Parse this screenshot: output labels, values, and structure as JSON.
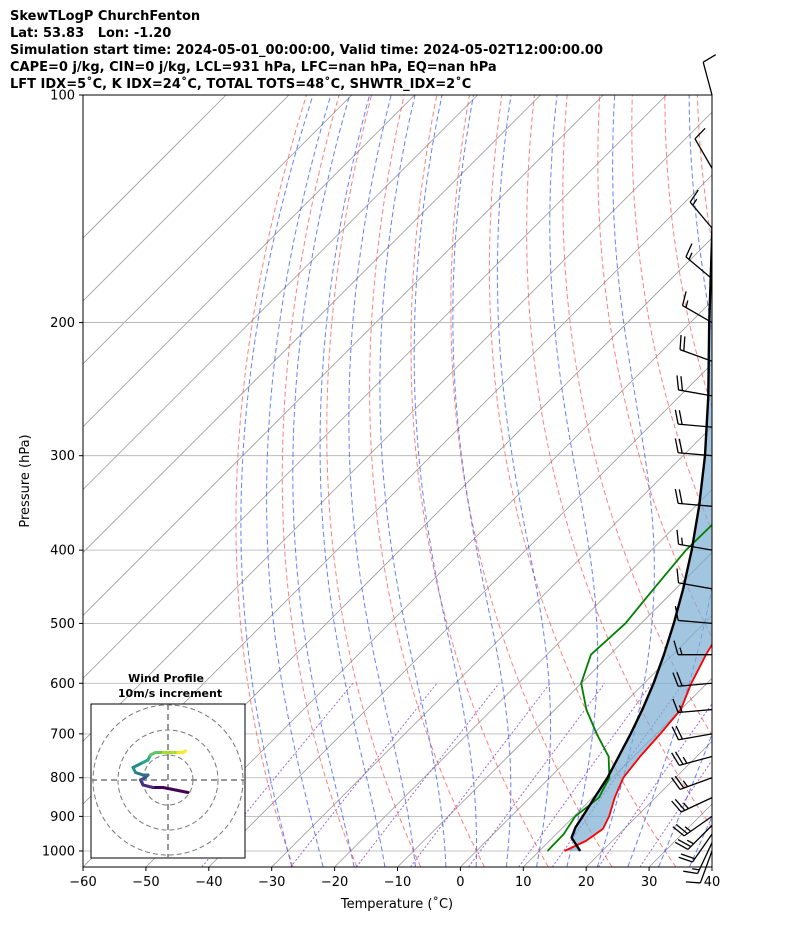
{
  "chart_data": {
    "type": "line",
    "title_lines": [
      "SkewTLogP ChurchFenton",
      "Lat: 53.83   Lon: -1.20",
      "Simulation start time: 2024-05-01_00:00:00, Valid time: 2024-05-02T12:00:00.00",
      "CAPE=0 j/kg, CIN=0 j/kg, LCL=931 hPa, LFC=nan hPa, EQ=nan hPa",
      "LFT IDX=5˚C, K IDX=24˚C, TOTAL TOTS=48˚C, SHWTR_IDX=2˚C"
    ],
    "xlabel": "Temperature (˚C)",
    "ylabel": "Pressure (hPa)",
    "xlim": [
      -60,
      40
    ],
    "ylim": [
      1050,
      100
    ],
    "y_scale": "log",
    "x_ticks": [
      -60,
      -50,
      -40,
      -30,
      -20,
      -10,
      0,
      10,
      20,
      30,
      40
    ],
    "y_ticks": [
      100,
      200,
      300,
      400,
      500,
      600,
      700,
      800,
      900,
      1000
    ],
    "skew": true,
    "grid": true,
    "colors": {
      "temperature": "#ff0000",
      "dewpoint": "#008000",
      "parcel": "#000000",
      "shade": "#7aaed3",
      "dry_adiabats": "#ff5555",
      "moist_adiabats": "#3355ff",
      "mixing_ratio": "#8844cc",
      "isotherms": "#999999"
    },
    "series": [
      {
        "name": "",
        "id": "temperature",
        "points": [
          [
            1000,
            14.0
          ],
          [
            970,
            15.8
          ],
          [
            935,
            16.6
          ],
          [
            900,
            15.6
          ],
          [
            850,
            13.5
          ],
          [
            800,
            11.7
          ],
          [
            750,
            11.0
          ],
          [
            700,
            10.6
          ],
          [
            650,
            10.0
          ],
          [
            600,
            7.5
          ],
          [
            550,
            5.3
          ],
          [
            500,
            3.3
          ],
          [
            450,
            0.3
          ],
          [
            400,
            -3.1
          ],
          [
            350,
            -6.3
          ],
          [
            300,
            -11.2
          ],
          [
            275,
            -12.2
          ],
          [
            250,
            -13.0
          ],
          [
            225,
            -12.0
          ],
          [
            210,
            -9.5
          ],
          [
            200,
            -6.2
          ],
          [
            180,
            -3.0
          ],
          [
            160,
            -0.5
          ],
          [
            140,
            3.0
          ],
          [
            125,
            6.5
          ],
          [
            115,
            8.5
          ],
          [
            106,
            9.6
          ],
          [
            100,
            10.5
          ]
        ]
      },
      {
        "name": "",
        "id": "dewpoint",
        "points": [
          [
            1000,
            11.3
          ],
          [
            950,
            11.2
          ],
          [
            900,
            10.2
          ],
          [
            850,
            11.0
          ],
          [
            800,
            9.5
          ],
          [
            750,
            6.0
          ],
          [
            700,
            0.5
          ],
          [
            650,
            -5.0
          ],
          [
            600,
            -10.0
          ],
          [
            550,
            -13.0
          ],
          [
            500,
            -12.5
          ],
          [
            450,
            -13.5
          ],
          [
            400,
            -14.5
          ],
          [
            350,
            -14.3
          ],
          [
            300,
            -18.0
          ],
          [
            270,
            -20.5
          ],
          [
            240,
            -22.0
          ],
          [
            210,
            -23.5
          ],
          [
            200,
            -24.5
          ],
          [
            180,
            -30.5
          ],
          [
            170,
            -34.0
          ],
          [
            150,
            -33.5
          ],
          [
            130,
            -32.5
          ],
          [
            110,
            -32.5
          ],
          [
            100,
            -32.3
          ]
        ]
      },
      {
        "name": "",
        "id": "parcel",
        "points": [
          [
            1000,
            16.5
          ],
          [
            960,
            13.0
          ],
          [
            931,
            12.0
          ],
          [
            900,
            11.4
          ],
          [
            850,
            10.3
          ],
          [
            800,
            9.2
          ],
          [
            750,
            7.6
          ],
          [
            700,
            5.9
          ],
          [
            650,
            3.9
          ],
          [
            600,
            1.5
          ],
          [
            550,
            -1.4
          ],
          [
            500,
            -4.8
          ],
          [
            450,
            -8.8
          ],
          [
            400,
            -13.6
          ],
          [
            350,
            -19.4
          ],
          [
            300,
            -26.5
          ],
          [
            250,
            -35.5
          ],
          [
            200,
            -47.0
          ],
          [
            150,
            -61.5
          ],
          [
            100,
            -80.0
          ]
        ]
      }
    ],
    "wind_barbs": [
      {
        "p": 1000,
        "speed_kt": 10,
        "dir": 200
      },
      {
        "p": 975,
        "speed_kt": 15,
        "dir": 205
      },
      {
        "p": 950,
        "speed_kt": 20,
        "dir": 215
      },
      {
        "p": 925,
        "speed_kt": 25,
        "dir": 225
      },
      {
        "p": 900,
        "speed_kt": 25,
        "dir": 235
      },
      {
        "p": 850,
        "speed_kt": 25,
        "dir": 245
      },
      {
        "p": 800,
        "speed_kt": 25,
        "dir": 250
      },
      {
        "p": 750,
        "speed_kt": 25,
        "dir": 255
      },
      {
        "p": 700,
        "speed_kt": 20,
        "dir": 260
      },
      {
        "p": 650,
        "speed_kt": 15,
        "dir": 265
      },
      {
        "p": 600,
        "speed_kt": 20,
        "dir": 265
      },
      {
        "p": 550,
        "speed_kt": 15,
        "dir": 270
      },
      {
        "p": 500,
        "speed_kt": 10,
        "dir": 275
      },
      {
        "p": 450,
        "speed_kt": 10,
        "dir": 280
      },
      {
        "p": 400,
        "speed_kt": 15,
        "dir": 280
      },
      {
        "p": 350,
        "speed_kt": 20,
        "dir": 275
      },
      {
        "p": 300,
        "speed_kt": 20,
        "dir": 275
      },
      {
        "p": 275,
        "speed_kt": 20,
        "dir": 275
      },
      {
        "p": 250,
        "speed_kt": 20,
        "dir": 280
      },
      {
        "p": 225,
        "speed_kt": 20,
        "dir": 290
      },
      {
        "p": 200,
        "speed_kt": 15,
        "dir": 300
      },
      {
        "p": 175,
        "speed_kt": 15,
        "dir": 310
      },
      {
        "p": 150,
        "speed_kt": 15,
        "dir": 320
      },
      {
        "p": 125,
        "speed_kt": 10,
        "dir": 330
      },
      {
        "p": 100,
        "speed_kt": 10,
        "dir": 345
      }
    ],
    "inset": {
      "title": "Wind Profile",
      "subtitle": "10m/s increment",
      "ring_spacing_ms": 10,
      "rings": 3,
      "hodograph": [
        [
          4.0,
          -2.5
        ],
        [
          1.5,
          -2.0
        ],
        [
          -1.0,
          -1.5
        ],
        [
          -3.0,
          -1.5
        ],
        [
          -5.0,
          -1.0
        ],
        [
          -5.5,
          0.0
        ],
        [
          -4.5,
          0.5
        ],
        [
          -4.0,
          1.0
        ],
        [
          -5.0,
          1.0
        ],
        [
          -6.5,
          1.5
        ],
        [
          -7.0,
          2.5
        ],
        [
          -6.0,
          3.0
        ],
        [
          -5.0,
          3.5
        ],
        [
          -4.0,
          4.0
        ],
        [
          -3.5,
          5.0
        ],
        [
          -2.5,
          5.5
        ],
        [
          -1.0,
          5.5
        ],
        [
          1.0,
          5.5
        ],
        [
          2.0,
          5.5
        ],
        [
          3.0,
          5.5
        ],
        [
          3.5,
          5.8
        ]
      ]
    }
  }
}
